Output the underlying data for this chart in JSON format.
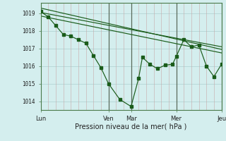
{
  "xlabel": "Pression niveau de la mer( hPa )",
  "background_color": "#d4eeee",
  "grid_color": "#b8d8d8",
  "vgrid_color": "#c8a8a8",
  "line_color": "#1a5c1a",
  "ylim": [
    1013.5,
    1019.6
  ],
  "yticks": [
    1014,
    1015,
    1016,
    1017,
    1018,
    1019
  ],
  "xtick_labels": [
    "Lun",
    "Ven",
    "Mar",
    "Mer",
    "Jeu"
  ],
  "xtick_positions": [
    0,
    36,
    48,
    72,
    96
  ],
  "vline_positions": [
    36,
    48,
    72,
    96
  ],
  "series1_x": [
    0,
    4,
    8,
    12,
    16,
    20,
    24,
    28,
    32,
    36,
    42,
    48,
    52,
    54,
    58,
    62,
    66,
    70,
    72,
    76,
    80,
    84,
    88,
    92,
    96
  ],
  "series1_y": [
    1019.1,
    1018.8,
    1018.3,
    1017.8,
    1017.7,
    1017.5,
    1017.3,
    1016.6,
    1015.9,
    1015.0,
    1014.1,
    1013.7,
    1015.3,
    1016.5,
    1016.1,
    1015.85,
    1016.05,
    1016.1,
    1016.55,
    1017.5,
    1017.1,
    1017.2,
    1016.0,
    1015.4,
    1016.1
  ],
  "series2_x": [
    0,
    96
  ],
  "series2_y": [
    1019.3,
    1016.95
  ],
  "series3_x": [
    0,
    96
  ],
  "series3_y": [
    1019.05,
    1017.1
  ],
  "series4_x": [
    0,
    96
  ],
  "series4_y": [
    1018.85,
    1016.75
  ],
  "total_x": 96
}
